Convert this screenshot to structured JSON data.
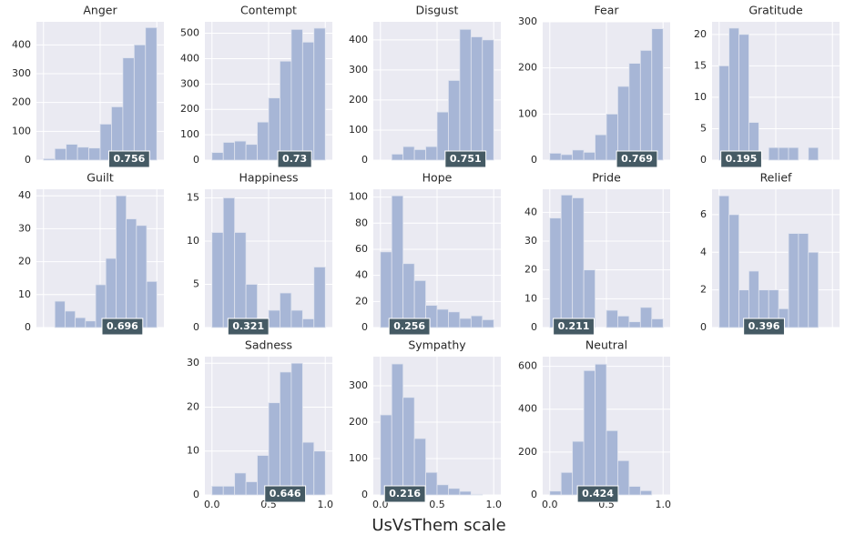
{
  "chart_data": [
    {
      "type": "histogram",
      "title": "Anger",
      "bins": [
        0,
        0.1,
        0.2,
        0.3,
        0.4,
        0.5,
        0.6,
        0.7,
        0.8,
        0.9,
        1.0
      ],
      "counts": [
        5,
        40,
        55,
        45,
        42,
        125,
        185,
        355,
        400,
        460
      ],
      "color": "#a7b6d6",
      "ylim": [
        0,
        480
      ],
      "yticks": [
        0,
        100,
        200,
        300,
        400
      ],
      "xlim": [
        -0.0625,
        1.0625
      ],
      "xticks": [
        {
          "value": 0,
          "label": "0.0"
        },
        0.5,
        {
          "value": 1,
          "label": "1.0"
        }
      ],
      "mean": 0.756,
      "grid": true
    },
    {
      "type": "histogram",
      "title": "Contempt",
      "bins": [
        0,
        0.1,
        0.2,
        0.3,
        0.4,
        0.5,
        0.6,
        0.7,
        0.8,
        0.9,
        1.0
      ],
      "counts": [
        30,
        70,
        75,
        62,
        150,
        245,
        390,
        515,
        465,
        520
      ],
      "color": "#a7b6d6",
      "ylim": [
        0,
        545
      ],
      "yticks": [
        0,
        100,
        200,
        300,
        400,
        500
      ],
      "xlim": [
        -0.0625,
        1.0625
      ],
      "xticks": [
        {
          "value": 0,
          "label": "0.0"
        },
        0.5,
        {
          "value": 1,
          "label": "1.0"
        }
      ],
      "mean": 0.73,
      "grid": true
    },
    {
      "type": "histogram",
      "title": "Disgust",
      "bins": [
        0,
        0.1,
        0.2,
        0.3,
        0.4,
        0.5,
        0.6,
        0.7,
        0.8,
        0.9,
        1.0
      ],
      "counts": [
        0,
        20,
        45,
        35,
        45,
        160,
        265,
        435,
        410,
        400
      ],
      "color": "#a7b6d6",
      "ylim": [
        0,
        460
      ],
      "yticks": [
        0,
        100,
        200,
        300,
        400
      ],
      "xlim": [
        -0.0625,
        1.0625
      ],
      "xticks": [
        {
          "value": 0,
          "label": "0.0"
        },
        0.5,
        {
          "value": 1,
          "label": "1.0"
        }
      ],
      "mean": 0.751,
      "grid": true
    },
    {
      "type": "histogram",
      "title": "Fear",
      "bins": [
        0,
        0.1,
        0.2,
        0.3,
        0.4,
        0.5,
        0.6,
        0.7,
        0.8,
        0.9,
        1.0
      ],
      "counts": [
        15,
        12,
        22,
        17,
        55,
        100,
        160,
        210,
        238,
        285
      ],
      "color": "#a7b6d6",
      "ylim": [
        0,
        300
      ],
      "yticks": [
        0,
        100,
        200,
        300
      ],
      "xlim": [
        -0.0625,
        1.0625
      ],
      "xticks": [
        {
          "value": 0,
          "label": "0.0"
        },
        0.5,
        {
          "value": 1,
          "label": "1.0"
        }
      ],
      "mean": 0.769,
      "grid": true
    },
    {
      "type": "histogram",
      "title": "Gratitude",
      "bins": [
        0,
        0.0875,
        0.175,
        0.2625,
        0.35,
        0.4375,
        0.525,
        0.6125,
        0.7,
        0.7875,
        0.875
      ],
      "counts": [
        15,
        21,
        20,
        6,
        0,
        2,
        2,
        2,
        0,
        2
      ],
      "color": "#a7b6d6",
      "ylim": [
        0,
        22
      ],
      "yticks": [
        0,
        5,
        10,
        15,
        20
      ],
      "xlim": [
        -0.0625,
        1.0625
      ],
      "xticks": [
        {
          "value": 0,
          "label": "0.0"
        },
        0.5,
        {
          "value": 1,
          "label": "1.0"
        }
      ],
      "mean": 0.195,
      "grid": true
    },
    {
      "type": "histogram",
      "title": "Guilt",
      "bins": [
        0.1,
        0.19,
        0.28,
        0.37,
        0.46,
        0.55,
        0.64,
        0.73,
        0.82,
        0.91,
        1.0
      ],
      "counts": [
        8,
        5,
        3,
        2,
        13,
        21,
        40,
        33,
        31,
        14
      ],
      "color": "#a7b6d6",
      "ylim": [
        0,
        42
      ],
      "yticks": [
        0,
        10,
        20,
        30,
        40
      ],
      "xlim": [
        -0.0625,
        1.0625
      ],
      "xticks": [
        {
          "value": 0,
          "label": "0.0"
        },
        0.5,
        {
          "value": 1,
          "label": "1.0"
        }
      ],
      "mean": 0.696,
      "grid": true
    },
    {
      "type": "histogram",
      "title": "Happiness",
      "bins": [
        0,
        0.1,
        0.2,
        0.3,
        0.4,
        0.5,
        0.6,
        0.7,
        0.8,
        0.9,
        1.0
      ],
      "counts": [
        11,
        15,
        11,
        5,
        0,
        2,
        4,
        2,
        1,
        7
      ],
      "color": "#a7b6d6",
      "ylim": [
        0,
        16
      ],
      "yticks": [
        0,
        5,
        10,
        15
      ],
      "xlim": [
        -0.0625,
        1.0625
      ],
      "xticks": [
        {
          "value": 0,
          "label": "0.0"
        },
        0.5,
        {
          "value": 1,
          "label": "1.0"
        }
      ],
      "mean": 0.321,
      "grid": true
    },
    {
      "type": "histogram",
      "title": "Hope",
      "bins": [
        0,
        0.1,
        0.2,
        0.3,
        0.4,
        0.5,
        0.6,
        0.7,
        0.8,
        0.9,
        1.0
      ],
      "counts": [
        58,
        101,
        49,
        36,
        17,
        14,
        12,
        7,
        9,
        6
      ],
      "color": "#a7b6d6",
      "ylim": [
        0,
        106
      ],
      "yticks": [
        0,
        20,
        40,
        60,
        80,
        100
      ],
      "xlim": [
        -0.0625,
        1.0625
      ],
      "xticks": [
        {
          "value": 0,
          "label": "0.0"
        },
        0.5,
        {
          "value": 1,
          "label": "1.0"
        }
      ],
      "mean": 0.256,
      "grid": true
    },
    {
      "type": "histogram",
      "title": "Pride",
      "bins": [
        0,
        0.1,
        0.2,
        0.3,
        0.4,
        0.5,
        0.6,
        0.7,
        0.8,
        0.9,
        1.0
      ],
      "counts": [
        38,
        46,
        45,
        20,
        0,
        6,
        4,
        2,
        7,
        3
      ],
      "color": "#a7b6d6",
      "ylim": [
        0,
        48
      ],
      "yticks": [
        0,
        10,
        20,
        30,
        40
      ],
      "xlim": [
        -0.0625,
        1.0625
      ],
      "xticks": [
        {
          "value": 0,
          "label": "0.0"
        },
        0.5,
        {
          "value": 1,
          "label": "1.0"
        }
      ],
      "mean": 0.211,
      "grid": true
    },
    {
      "type": "histogram",
      "title": "Relief",
      "bins": [
        0,
        0.0875,
        0.175,
        0.2625,
        0.35,
        0.4375,
        0.525,
        0.6125,
        0.7,
        0.7875,
        0.875
      ],
      "counts": [
        7,
        6,
        2,
        3,
        2,
        2,
        1,
        5,
        5,
        4
      ],
      "color": "#a7b6d6",
      "ylim": [
        0,
        7.35
      ],
      "yticks": [
        0,
        2,
        4,
        6
      ],
      "xlim": [
        -0.0625,
        1.0625
      ],
      "xticks": [
        {
          "value": 0,
          "label": "0.0"
        },
        0.5,
        {
          "value": 1,
          "label": "1.0"
        }
      ],
      "mean": 0.396,
      "grid": true
    },
    {
      "type": "histogram",
      "title": "Sadness",
      "bins": [
        0,
        0.1,
        0.2,
        0.3,
        0.4,
        0.5,
        0.6,
        0.7,
        0.8,
        0.9,
        1.0
      ],
      "counts": [
        2,
        2,
        5,
        3,
        9,
        21,
        28,
        30,
        12,
        10
      ],
      "color": "#a7b6d6",
      "ylim": [
        0,
        31.5
      ],
      "yticks": [
        0,
        10,
        20,
        30
      ],
      "xlim": [
        -0.0625,
        1.0625
      ],
      "xticks": [
        {
          "value": 0,
          "label": "0.0"
        },
        0.5,
        {
          "value": 1,
          "label": "1.0"
        }
      ],
      "mean": 0.646,
      "grid": true
    },
    {
      "type": "histogram",
      "title": "Sympathy",
      "bins": [
        0,
        0.1,
        0.2,
        0.3,
        0.4,
        0.5,
        0.6,
        0.7,
        0.8,
        0.9,
        1.0
      ],
      "counts": [
        220,
        360,
        268,
        155,
        62,
        28,
        18,
        10,
        2,
        0
      ],
      "color": "#a7b6d6",
      "ylim": [
        0,
        380
      ],
      "yticks": [
        0,
        100,
        200,
        300
      ],
      "xlim": [
        -0.0625,
        1.0625
      ],
      "xticks": [
        {
          "value": 0,
          "label": "0.0"
        },
        0.5,
        {
          "value": 1,
          "label": "1.0"
        }
      ],
      "mean": 0.216,
      "grid": true
    },
    {
      "type": "histogram",
      "title": "Neutral",
      "bins": [
        0,
        0.1,
        0.2,
        0.3,
        0.4,
        0.5,
        0.6,
        0.7,
        0.8,
        0.9,
        1.0
      ],
      "counts": [
        18,
        105,
        250,
        580,
        610,
        300,
        160,
        40,
        20,
        0
      ],
      "color": "#a7b6d6",
      "ylim": [
        0,
        645
      ],
      "yticks": [
        0,
        200,
        400,
        600
      ],
      "xlim": [
        -0.0625,
        1.0625
      ],
      "xticks": [
        {
          "value": 0,
          "label": "0.0"
        },
        0.5,
        {
          "value": 1,
          "label": "1.0"
        }
      ],
      "mean": 0.424,
      "grid": true
    }
  ],
  "xlabel": "UsVsThem scale"
}
